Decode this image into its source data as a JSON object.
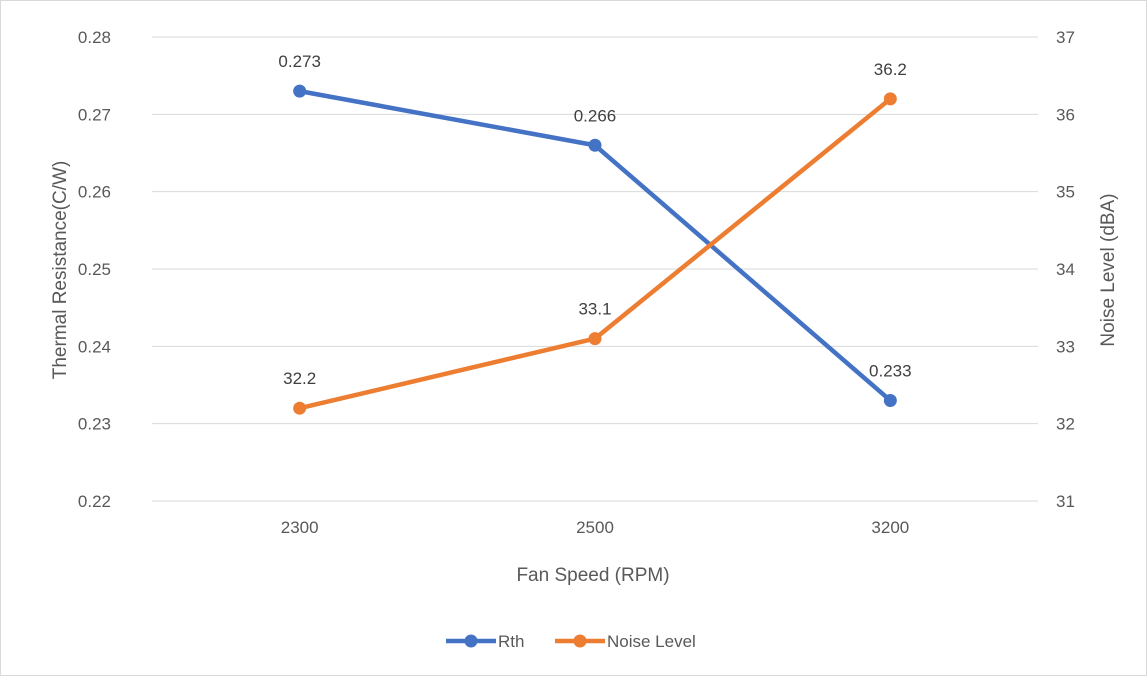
{
  "chart_data": {
    "type": "line",
    "categories": [
      "2300",
      "2500",
      "3200"
    ],
    "xlabel": "Fan Speed (RPM)",
    "ylabel": "Thermal Resistance(C/W)",
    "y2label": "Noise Level (dBA)",
    "ylim": [
      0.22,
      0.28
    ],
    "y2lim": [
      31,
      37
    ],
    "yticks": [
      "0.22",
      "0.23",
      "0.24",
      "0.25",
      "0.26",
      "0.27",
      "0.28"
    ],
    "y2ticks": [
      "31",
      "32",
      "33",
      "34",
      "35",
      "36",
      "37"
    ],
    "grid": true,
    "legend_position": "bottom",
    "series": [
      {
        "name": "Rth",
        "axis": "left",
        "color": "#4472C4",
        "values": [
          0.273,
          0.266,
          0.233
        ],
        "labels": [
          "0.273",
          "0.266",
          "0.233"
        ]
      },
      {
        "name": "Noise Level",
        "axis": "right",
        "color": "#ED7D31",
        "values": [
          32.2,
          33.1,
          36.2
        ],
        "labels": [
          "32.2",
          "33.1",
          "36.2"
        ]
      }
    ]
  }
}
